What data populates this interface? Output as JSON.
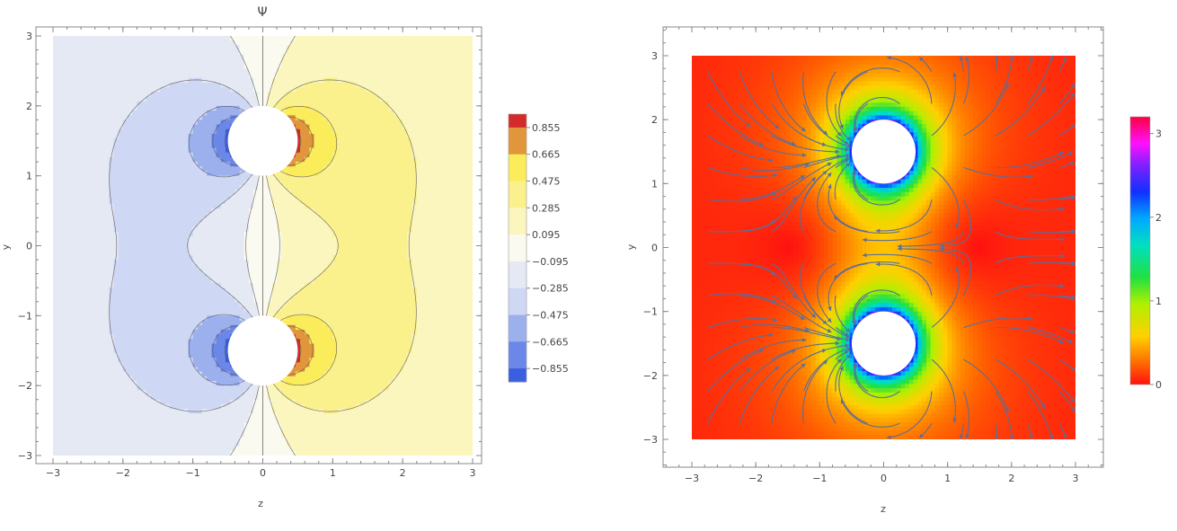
{
  "chart_data": [
    {
      "type": "heatmap",
      "subtype": "filled-contour",
      "title": "Ψ",
      "xlabel": "z",
      "ylabel": "y",
      "xlim": [
        -3,
        3
      ],
      "ylim": [
        -3,
        3
      ],
      "x_ticks": [
        "−3",
        "−2",
        "−1",
        "0",
        "1",
        "2",
        "3"
      ],
      "y_ticks": [
        "3",
        "2",
        "1",
        "0",
        "−1",
        "−2",
        "−3"
      ],
      "obstacles": [
        {
          "center": [
            0,
            1.5
          ],
          "radius": 0.5
        },
        {
          "center": [
            0,
            -1.5
          ],
          "radius": 0.5
        }
      ],
      "colorbar": {
        "range": [
          -0.95,
          0.95
        ],
        "labels": [
          "0.855",
          "0.665",
          "0.475",
          "0.285",
          "0.095",
          "−0.095",
          "−0.285",
          "−0.475",
          "−0.665",
          "−0.855"
        ],
        "low_color": "#3a5fe0",
        "mid_color": "#fbfaf0",
        "high_color": "#d42a2a"
      },
      "grid": false,
      "legend_position": "right"
    },
    {
      "type": "heatmap",
      "subtype": "stream-density",
      "title": "",
      "xlabel": "z",
      "ylabel": "y",
      "xlim": [
        -3,
        3
      ],
      "ylim": [
        -3,
        3
      ],
      "x_ticks": [
        "−3",
        "−2",
        "−1",
        "0",
        "1",
        "2",
        "3"
      ],
      "y_ticks": [
        "3",
        "2",
        "1",
        "0",
        "−1",
        "−2",
        "−3"
      ],
      "obstacles": [
        {
          "center": [
            0,
            1.5
          ],
          "radius": 0.5
        },
        {
          "center": [
            0,
            -1.5
          ],
          "radius": 0.5
        }
      ],
      "colorbar": {
        "range": [
          0,
          3.2
        ],
        "labels": [
          "3",
          "2",
          "1",
          "0"
        ],
        "colormap": "rainbow"
      },
      "stream_color": "#5a6e9a",
      "grid": false,
      "legend_position": "right"
    }
  ]
}
